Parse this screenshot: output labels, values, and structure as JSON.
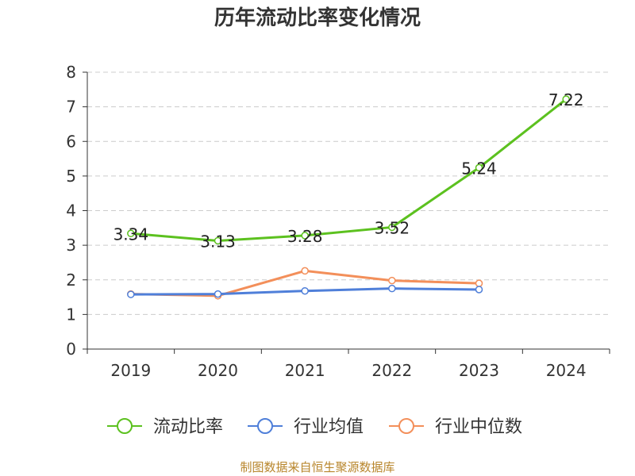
{
  "chart_data": {
    "type": "line",
    "title": "历年流动比率变化情况",
    "categories": [
      "2019",
      "2020",
      "2021",
      "2022",
      "2023",
      "2024"
    ],
    "ylim": [
      0,
      8
    ],
    "yticks": [
      0,
      1,
      2,
      3,
      4,
      5,
      6,
      7,
      8
    ],
    "grid": true,
    "legend_position": "bottom",
    "series": [
      {
        "name": "流动比率",
        "color": "#5cc11f",
        "values": [
          3.34,
          3.13,
          3.28,
          3.52,
          5.24,
          7.22
        ],
        "labels": [
          "3.34",
          "3.13",
          "3.28",
          "3.52",
          "5.24",
          "7.22"
        ]
      },
      {
        "name": "行业均值",
        "color": "#4f7fd9",
        "values": [
          1.58,
          1.59,
          1.68,
          1.75,
          1.72,
          null
        ]
      },
      {
        "name": "行业中位数",
        "color": "#f38f5a",
        "values": [
          1.59,
          1.54,
          2.26,
          1.98,
          1.9,
          null
        ]
      }
    ]
  },
  "footer": "制图数据来自恒生聚源数据库"
}
